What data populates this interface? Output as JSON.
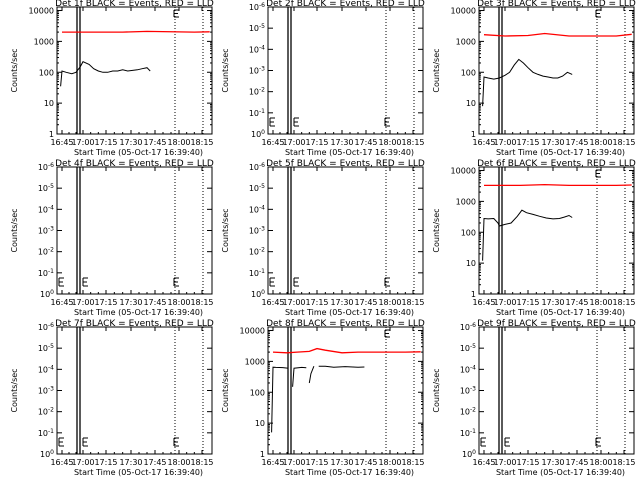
{
  "chart_data": [
    {
      "type": "line",
      "title": "Det 1f BLACK = Events, RED = LLD",
      "xlabel": "Start Time (05-Oct-17 16:39:40)",
      "ylabel": "Counts/sec",
      "x_ticks": [
        "16:45",
        "17:00",
        "17:15",
        "17:30",
        "17:45",
        "18:00",
        "18:15"
      ],
      "y_scale": "log",
      "y_ticks": [
        "1",
        "10",
        "100",
        "1000",
        "10000"
      ],
      "ylim": [
        1,
        13000
      ],
      "series": [
        {
          "color": "#ff0000",
          "x": [
            45,
            85,
            100,
            130,
            140
          ],
          "y": [
            2000,
            2000,
            2100,
            2000,
            2050
          ]
        },
        {
          "color": "#000000",
          "x": [
            44,
            45,
            48,
            52,
            55,
            58,
            60,
            64,
            67,
            70,
            73,
            76,
            79,
            82,
            85,
            88,
            91,
            94,
            97,
            100,
            102
          ],
          "y": [
            35,
            110,
            100,
            90,
            100,
            150,
            220,
            180,
            130,
            110,
            100,
            100,
            110,
            110,
            120,
            110,
            115,
            120,
            130,
            140,
            110
          ]
        }
      ]
    },
    {
      "type": "line",
      "title": "Det 2f BLACK = Events, RED = LLD",
      "xlabel": "Start Time (05-Oct-17 16:39:40)",
      "ylabel": "Counts/sec",
      "x_ticks": [
        "16:45",
        "17:00",
        "17:15",
        "17:30",
        "17:45",
        "18:00",
        "18:15"
      ],
      "y_scale": "log",
      "y_ticks": [
        "10^0",
        "10^-1",
        "10^-2",
        "10^-3",
        "10^-4",
        "10^-5",
        "10^-6"
      ],
      "series": []
    },
    {
      "type": "line",
      "title": "Det 3f BLACK = Events, RED = LLD",
      "xlabel": "Start Time (05-Oct-17 16:39:40)",
      "ylabel": "Counts/sec",
      "x_ticks": [
        "16:45",
        "17:00",
        "17:15",
        "17:30",
        "17:45",
        "18:00",
        "18:15"
      ],
      "y_scale": "log",
      "y_ticks": [
        "1",
        "10",
        "100",
        "1000",
        "10000"
      ],
      "ylim": [
        1,
        13000
      ],
      "series": [
        {
          "color": "#ff0000",
          "x": [
            45,
            60,
            75,
            85,
            100,
            130,
            140
          ],
          "y": [
            1650,
            1500,
            1550,
            1800,
            1500,
            1500,
            1700
          ]
        },
        {
          "color": "#000000",
          "x": [
            44,
            45,
            48,
            52,
            56,
            60,
            63,
            66,
            69,
            72,
            75,
            78,
            81,
            84,
            87,
            90,
            93,
            96,
            99,
            102
          ],
          "y": [
            8,
            70,
            65,
            60,
            65,
            80,
            100,
            170,
            260,
            200,
            140,
            100,
            85,
            75,
            70,
            65,
            65,
            75,
            100,
            85
          ]
        }
      ]
    },
    {
      "type": "line",
      "title": "Det 4f BLACK = Events, RED = LLD",
      "xlabel": "Start Time (05-Oct-17 16:39:40)",
      "ylabel": "Counts/sec",
      "x_ticks": [
        "16:45",
        "17:00",
        "17:15",
        "17:30",
        "17:45",
        "18:00",
        "18:15"
      ],
      "y_scale": "log",
      "y_ticks": [
        "10^0",
        "10^-1",
        "10^-2",
        "10^-3",
        "10^-4",
        "10^-5",
        "10^-6"
      ],
      "series": []
    },
    {
      "type": "line",
      "title": "Det 5f BLACK = Events, RED = LLD",
      "xlabel": "Start Time (05-Oct-17 16:39:40)",
      "ylabel": "Counts/sec",
      "x_ticks": [
        "16:45",
        "17:00",
        "17:15",
        "17:30",
        "17:45",
        "18:00",
        "18:15"
      ],
      "y_scale": "log",
      "y_ticks": [
        "10^0",
        "10^-1",
        "10^-2",
        "10^-3",
        "10^-4",
        "10^-5",
        "10^-6"
      ],
      "series": []
    },
    {
      "type": "line",
      "title": "Det 6f BLACK = Events, RED = LLD",
      "xlabel": "Start Time (05-Oct-17 16:39:40)",
      "ylabel": "Counts/sec",
      "x_ticks": [
        "16:45",
        "17:00",
        "17:15",
        "17:30",
        "17:45",
        "18:00",
        "18:15"
      ],
      "y_scale": "log",
      "y_ticks": [
        "1",
        "10",
        "100",
        "1000",
        "10000"
      ],
      "ylim": [
        1,
        13000
      ],
      "series": [
        {
          "color": "#ff0000",
          "x": [
            45,
            70,
            85,
            100,
            130,
            140
          ],
          "y": [
            3300,
            3300,
            3500,
            3300,
            3300,
            3400
          ]
        },
        {
          "color": "#000000",
          "x": [
            44,
            45,
            48,
            52,
            55,
            56,
            60,
            64,
            68,
            71,
            74,
            78,
            82,
            86,
            90,
            94,
            97,
            100,
            102
          ],
          "y": [
            12,
            280,
            270,
            280,
            200,
            160,
            180,
            200,
            330,
            520,
            430,
            380,
            330,
            290,
            270,
            280,
            310,
            350,
            300
          ]
        }
      ]
    },
    {
      "type": "line",
      "title": "Det 7f BLACK = Events, RED = LLD",
      "xlabel": "Start Time (05-Oct-17 16:39:40)",
      "ylabel": "Counts/sec",
      "x_ticks": [
        "16:45",
        "17:00",
        "17:15",
        "17:30",
        "17:45",
        "18:00",
        "18:15"
      ],
      "y_scale": "log",
      "y_ticks": [
        "10^0",
        "10^-1",
        "10^-2",
        "10^-3",
        "10^-4",
        "10^-5",
        "10^-6"
      ],
      "series": []
    },
    {
      "type": "line",
      "title": "Det 8f BLACK = Events, RED = LLD",
      "xlabel": "Start Time (05-Oct-17 16:39:40)",
      "ylabel": "Counts/sec",
      "x_ticks": [
        "16:45",
        "17:00",
        "17:15",
        "17:30",
        "17:45",
        "18:00",
        "18:15"
      ],
      "y_scale": "log",
      "y_ticks": [
        "1",
        "10",
        "100",
        "1000",
        "10000"
      ],
      "ylim": [
        1,
        13000
      ],
      "series": [
        {
          "color": "#ff0000",
          "x": [
            45,
            55,
            62,
            70,
            75,
            80,
            90,
            100,
            130,
            140
          ],
          "y": [
            2000,
            1900,
            2000,
            2100,
            2600,
            2300,
            1900,
            2000,
            2000,
            2050
          ]
        },
        {
          "color": "#000000",
          "x": [
            44,
            45,
            47,
            52,
            56
          ],
          "y": [
            5,
            650,
            640,
            630,
            600
          ]
        },
        {
          "color": "#000000",
          "x": [
            59,
            60,
            65,
            68
          ],
          "y": [
            150,
            600,
            640,
            620
          ]
        },
        {
          "color": "#000000",
          "x": [
            70,
            71,
            73
          ],
          "y": [
            200,
            400,
            700
          ]
        },
        {
          "color": "#000000",
          "x": [
            76,
            80,
            85,
            92,
            100,
            104
          ],
          "y": [
            700,
            700,
            650,
            680,
            650,
            660
          ]
        }
      ]
    },
    {
      "type": "line",
      "title": "Det 9f BLACK = Events, RED = LLD",
      "xlabel": "Start Time (05-Oct-17 16:39:40)",
      "ylabel": "Counts/sec",
      "x_ticks": [
        "16:45",
        "17:00",
        "17:15",
        "17:30",
        "17:45",
        "18:00",
        "18:15"
      ],
      "y_scale": "log",
      "y_ticks": [
        "10^0",
        "10^-1",
        "10^-2",
        "10^-3",
        "10^-4",
        "10^-5",
        "10^-6"
      ],
      "series": []
    }
  ]
}
